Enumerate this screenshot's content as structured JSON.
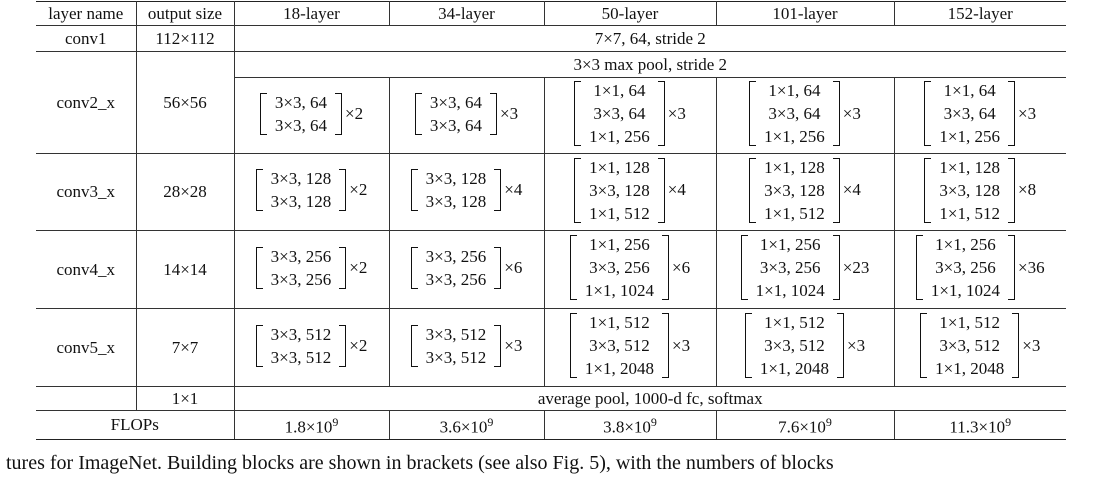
{
  "header": [
    "layer name",
    "output size",
    "18-layer",
    "34-layer",
    "50-layer",
    "101-layer",
    "152-layer"
  ],
  "conv1": {
    "name": "conv1",
    "size": "112×112",
    "spec": "7×7, 64, stride 2"
  },
  "conv2": {
    "name": "conv2_x",
    "size": "56×56",
    "pool": "3×3 max pool, stride 2",
    "blocks": [
      {
        "lines": [
          "3×3, 64",
          "3×3, 64"
        ],
        "mult": "×2"
      },
      {
        "lines": [
          "3×3, 64",
          "3×3, 64"
        ],
        "mult": "×3"
      },
      {
        "lines": [
          "1×1, 64",
          "3×3, 64",
          "1×1, 256"
        ],
        "mult": "×3"
      },
      {
        "lines": [
          "1×1, 64",
          "3×3, 64",
          "1×1, 256"
        ],
        "mult": "×3"
      },
      {
        "lines": [
          "1×1, 64",
          "3×3, 64",
          "1×1, 256"
        ],
        "mult": "×3"
      }
    ]
  },
  "conv3": {
    "name": "conv3_x",
    "size": "28×28",
    "blocks": [
      {
        "lines": [
          "3×3, 128",
          "3×3, 128"
        ],
        "mult": "×2"
      },
      {
        "lines": [
          "3×3, 128",
          "3×3, 128"
        ],
        "mult": "×4"
      },
      {
        "lines": [
          "1×1, 128",
          "3×3, 128",
          "1×1, 512"
        ],
        "mult": "×4"
      },
      {
        "lines": [
          "1×1, 128",
          "3×3, 128",
          "1×1, 512"
        ],
        "mult": "×4"
      },
      {
        "lines": [
          "1×1, 128",
          "3×3, 128",
          "1×1, 512"
        ],
        "mult": "×8"
      }
    ]
  },
  "conv4": {
    "name": "conv4_x",
    "size": "14×14",
    "blocks": [
      {
        "lines": [
          "3×3, 256",
          "3×3, 256"
        ],
        "mult": "×2"
      },
      {
        "lines": [
          "3×3, 256",
          "3×3, 256"
        ],
        "mult": "×6"
      },
      {
        "lines": [
          "1×1, 256",
          "3×3, 256",
          "1×1, 1024"
        ],
        "mult": "×6"
      },
      {
        "lines": [
          "1×1, 256",
          "3×3, 256",
          "1×1, 1024"
        ],
        "mult": "×23"
      },
      {
        "lines": [
          "1×1, 256",
          "3×3, 256",
          "1×1, 1024"
        ],
        "mult": "×36"
      }
    ]
  },
  "conv5": {
    "name": "conv5_x",
    "size": "7×7",
    "blocks": [
      {
        "lines": [
          "3×3, 512",
          "3×3, 512"
        ],
        "mult": "×2"
      },
      {
        "lines": [
          "3×3, 512",
          "3×3, 512"
        ],
        "mult": "×3"
      },
      {
        "lines": [
          "1×1, 512",
          "3×3, 512",
          "1×1, 2048"
        ],
        "mult": "×3"
      },
      {
        "lines": [
          "1×1, 512",
          "3×3, 512",
          "1×1, 2048"
        ],
        "mult": "×3"
      },
      {
        "lines": [
          "1×1, 512",
          "3×3, 512",
          "1×1, 2048"
        ],
        "mult": "×3"
      }
    ]
  },
  "final": {
    "size": "1×1",
    "spec": "average pool, 1000-d fc, softmax"
  },
  "flops": {
    "label": "FLOPs",
    "values": [
      {
        "base": "1.8×10",
        "exp": "9"
      },
      {
        "base": "3.6×10",
        "exp": "9"
      },
      {
        "base": "3.8×10",
        "exp": "9"
      },
      {
        "base": "7.6×10",
        "exp": "9"
      },
      {
        "base": "11.3×10",
        "exp": "9"
      }
    ]
  },
  "caption": "tures for ImageNet. Building blocks are shown in brackets (see also Fig. 5), with the numbers of blocks"
}
